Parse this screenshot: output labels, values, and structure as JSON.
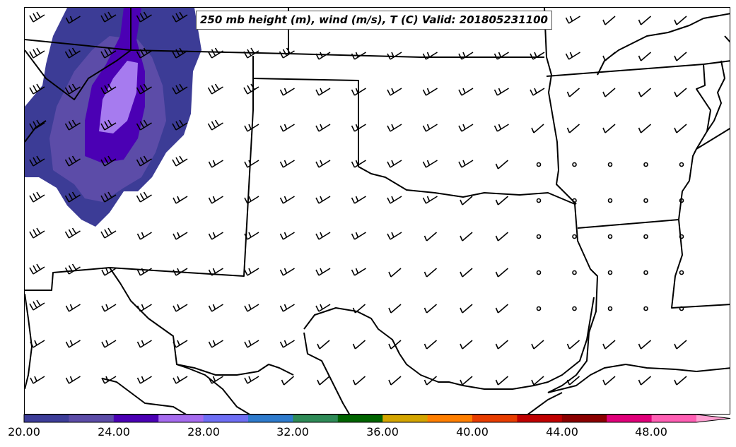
{
  "map": {
    "title": "250 mb height (m), wind (m/s), T (C) Valid: 201805231100"
  },
  "colorbar": {
    "tick_labels": [
      "20.00",
      "24.00",
      "28.00",
      "32.00",
      "36.00",
      "40.00",
      "44.00",
      "48.00"
    ],
    "colors": [
      "#3d3d99",
      "#5c4ca8",
      "#4b00b4",
      "#a66bef",
      "#6e6ef5",
      "#2e7bcd",
      "#2e8b57",
      "#006400",
      "#d4a500",
      "#ff7f00",
      "#e83d00",
      "#c00000",
      "#8b0000",
      "#e0007a",
      "#ff5fb4"
    ],
    "extend_color": "#ffa0d2"
  },
  "fill_colors": {
    "outer": "#3c3c96",
    "mid": "#5c4ca8",
    "inner": "#4b00b4",
    "core": "#a67bef"
  },
  "line_color": "#000000"
}
